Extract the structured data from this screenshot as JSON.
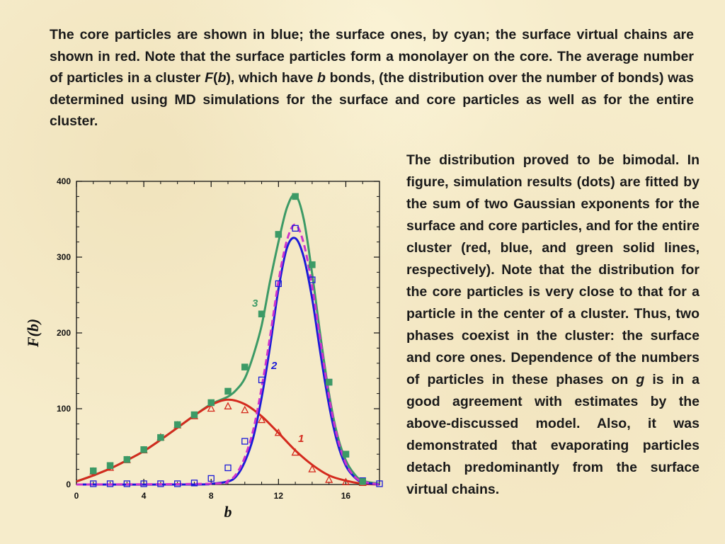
{
  "text": {
    "top_p1": "The core particles are shown in blue; the surface ones, by cyan; the surface virtual chains are shown in red. Note that the surface particles form a monolayer on the core. The average number of particles in a cluster ",
    "top_F": "F",
    "top_paren_open": "(",
    "top_b1": "b",
    "top_p2": "), which have ",
    "top_b2": "b",
    "top_p3": " bonds, (the distribution over the number of bonds) was determined using MD simulations for the surface and core particles as well as for the entire cluster.",
    "right_p1": "The distribution proved to be bimodal. In figure, simulation results (dots) are fitted by the sum of two Gaussian exponents for the surface and core particles, and for the entire cluster (red, blue, and green solid lines, respectively). Note that the distribution for the core particles is very close to that for a particle in the center of a cluster. Thus, two phases coexist in the cluster: the surface and core ones. Dependence of the numbers of particles in these phases on ",
    "right_g": "g",
    "right_p2": " is in a good agreement with estimates by the above-discussed model. Also, it was demonstrated that evaporating particles detach predominantly from the surface virtual chains."
  },
  "chart_data": {
    "type": "line",
    "xlabel": "b",
    "ylabel": "F(b)",
    "xlim": [
      0,
      18
    ],
    "ylim": [
      0,
      400
    ],
    "xticks": [
      0,
      4,
      8,
      12,
      16
    ],
    "yticks": [
      0,
      100,
      200,
      300,
      400
    ],
    "grid": false,
    "series": [
      {
        "name": "1",
        "color": "#d42a1e",
        "marker": "triangle",
        "points": [
          [
            1,
            17
          ],
          [
            2,
            22
          ],
          [
            3,
            32
          ],
          [
            4,
            45
          ],
          [
            5,
            62
          ],
          [
            6,
            78
          ],
          [
            7,
            90
          ],
          [
            8,
            100
          ],
          [
            9,
            103
          ],
          [
            10,
            98
          ],
          [
            11,
            85
          ],
          [
            12,
            68
          ],
          [
            13,
            42
          ],
          [
            14,
            20
          ],
          [
            15,
            6
          ],
          [
            16,
            3
          ],
          [
            17,
            2
          ]
        ],
        "fit": [
          [
            0,
            4
          ],
          [
            1,
            12
          ],
          [
            2,
            21
          ],
          [
            3,
            32
          ],
          [
            4,
            44
          ],
          [
            5,
            59
          ],
          [
            6,
            75
          ],
          [
            7,
            91
          ],
          [
            8,
            105
          ],
          [
            9,
            112
          ],
          [
            10,
            106
          ],
          [
            11,
            90
          ],
          [
            12,
            68
          ],
          [
            13,
            45
          ],
          [
            14,
            26
          ],
          [
            15,
            12
          ],
          [
            16,
            5
          ],
          [
            17,
            1
          ],
          [
            18,
            0
          ]
        ]
      },
      {
        "name": "2",
        "color": "#1a1ad8",
        "marker": "square-open",
        "points": [
          [
            1,
            1
          ],
          [
            2,
            1
          ],
          [
            3,
            1
          ],
          [
            4,
            1
          ],
          [
            5,
            1
          ],
          [
            6,
            1
          ],
          [
            7,
            2
          ],
          [
            8,
            8
          ],
          [
            9,
            22
          ],
          [
            10,
            57
          ],
          [
            11,
            138
          ],
          [
            12,
            265
          ],
          [
            13,
            338
          ],
          [
            14,
            270
          ],
          [
            15,
            135
          ],
          [
            16,
            40
          ],
          [
            17,
            5
          ],
          [
            18,
            1
          ]
        ],
        "fit": [
          [
            0,
            0
          ],
          [
            7,
            0
          ],
          [
            8,
            1
          ],
          [
            9,
            4
          ],
          [
            9.5,
            11
          ],
          [
            10,
            30
          ],
          [
            10.5,
            62
          ],
          [
            11,
            115
          ],
          [
            11.5,
            182
          ],
          [
            12,
            258
          ],
          [
            12.5,
            312
          ],
          [
            13,
            325
          ],
          [
            13.5,
            300
          ],
          [
            14,
            245
          ],
          [
            14.5,
            172
          ],
          [
            15,
            105
          ],
          [
            15.5,
            55
          ],
          [
            16,
            25
          ],
          [
            16.5,
            10
          ],
          [
            17,
            3
          ],
          [
            18,
            0
          ]
        ]
      },
      {
        "name": "3",
        "color": "#3c9a66",
        "marker": "square-filled",
        "points": [
          [
            1,
            18
          ],
          [
            2,
            25
          ],
          [
            3,
            33
          ],
          [
            4,
            46
          ],
          [
            5,
            62
          ],
          [
            6,
            79
          ],
          [
            7,
            92
          ],
          [
            8,
            108
          ],
          [
            9,
            123
          ],
          [
            10,
            155
          ],
          [
            11,
            225
          ],
          [
            12,
            330
          ],
          [
            13,
            380
          ],
          [
            14,
            290
          ],
          [
            15,
            135
          ],
          [
            16,
            40
          ],
          [
            17,
            4
          ]
        ],
        "fit": [
          [
            0,
            4
          ],
          [
            1,
            12
          ],
          [
            2,
            21
          ],
          [
            3,
            32
          ],
          [
            4,
            44
          ],
          [
            5,
            59
          ],
          [
            6,
            75
          ],
          [
            7,
            91
          ],
          [
            8,
            106
          ],
          [
            9,
            116
          ],
          [
            9.5,
            125
          ],
          [
            10,
            140
          ],
          [
            10.5,
            170
          ],
          [
            11,
            210
          ],
          [
            11.5,
            268
          ],
          [
            12,
            320
          ],
          [
            12.5,
            365
          ],
          [
            13,
            382
          ],
          [
            13.5,
            350
          ],
          [
            14,
            278
          ],
          [
            14.5,
            195
          ],
          [
            15,
            120
          ],
          [
            15.5,
            65
          ],
          [
            16,
            32
          ],
          [
            16.5,
            14
          ],
          [
            17,
            5
          ],
          [
            18,
            1
          ]
        ]
      },
      {
        "name": "",
        "color": "#cc33cc",
        "style": "dashed",
        "fit": [
          [
            0,
            0
          ],
          [
            8,
            1
          ],
          [
            9,
            5
          ],
          [
            9.5,
            14
          ],
          [
            10,
            36
          ],
          [
            10.5,
            72
          ],
          [
            11,
            128
          ],
          [
            11.5,
            195
          ],
          [
            12,
            268
          ],
          [
            12.5,
            322
          ],
          [
            13,
            343
          ],
          [
            13.5,
            318
          ],
          [
            14,
            262
          ],
          [
            14.5,
            188
          ],
          [
            15,
            116
          ],
          [
            15.5,
            62
          ],
          [
            16,
            28
          ],
          [
            16.5,
            11
          ],
          [
            17,
            4
          ],
          [
            18,
            0
          ]
        ]
      }
    ]
  }
}
